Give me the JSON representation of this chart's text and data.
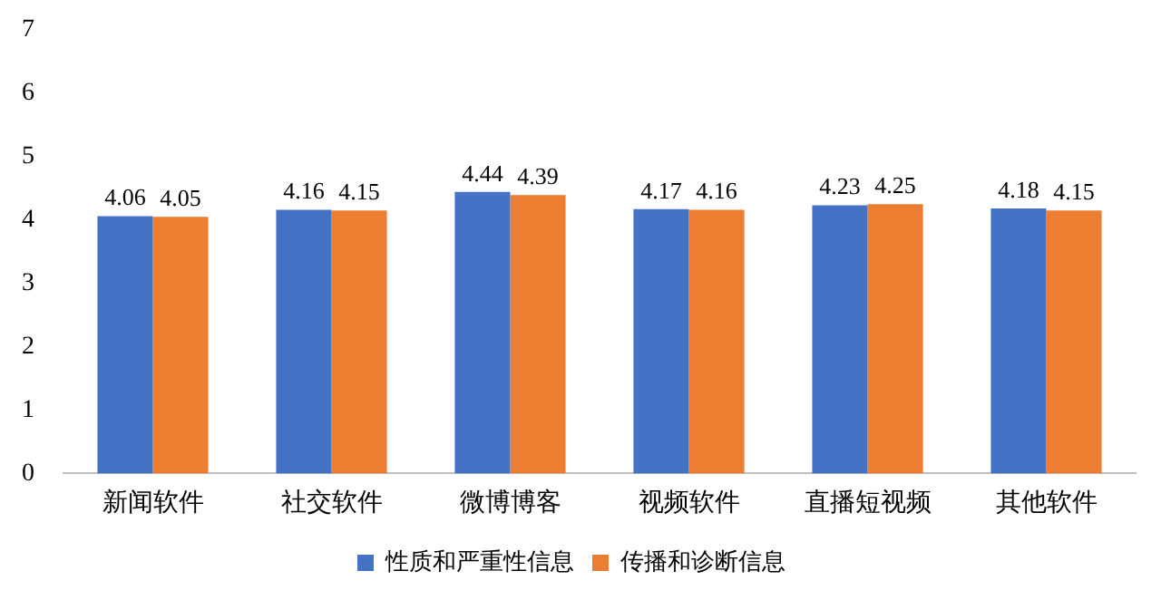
{
  "chart_data": {
    "type": "bar",
    "categories": [
      "新闻软件",
      "社交软件",
      "微博博客",
      "视频软件",
      "直播短视频",
      "其他软件"
    ],
    "series": [
      {
        "name": "性质和严重性信息",
        "color": "#4472c4",
        "values": [
          4.06,
          4.16,
          4.44,
          4.17,
          4.23,
          4.18
        ]
      },
      {
        "name": "传播和诊断信息",
        "color": "#ed7d31",
        "values": [
          4.05,
          4.15,
          4.39,
          4.16,
          4.25,
          4.15
        ]
      }
    ],
    "ylim": [
      0,
      7
    ],
    "yticks": [
      0,
      1,
      2,
      3,
      4,
      5,
      6,
      7
    ],
    "grid": false,
    "legend": "bottom",
    "data_labels": true
  }
}
